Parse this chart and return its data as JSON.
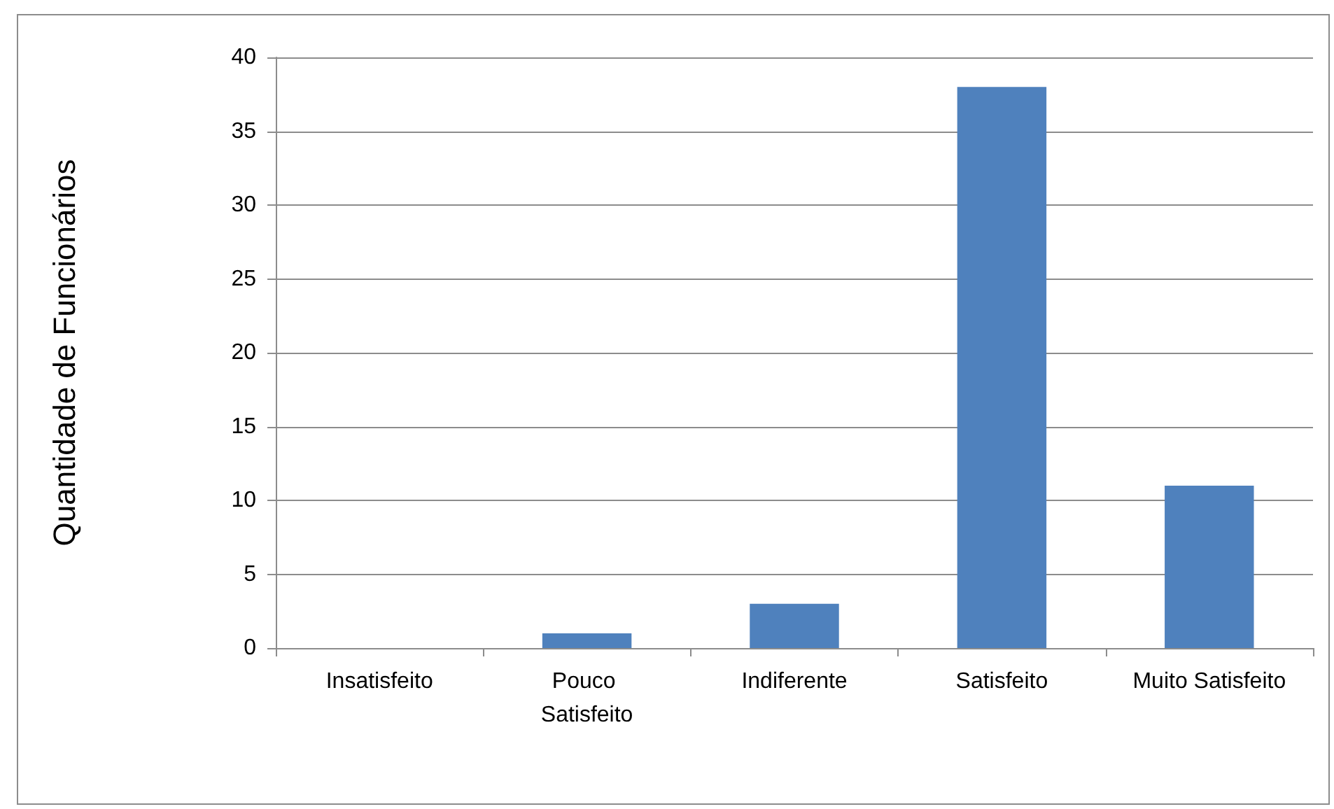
{
  "chart_data": {
    "type": "bar",
    "ylabel": "Quantidade de Funcionários",
    "categories": [
      "Insatisfeito",
      "Pouco Satisfeito",
      "Indiferente",
      "Satisfeito",
      "Muito Satisfeito"
    ],
    "values": [
      0,
      1,
      3,
      38,
      11
    ],
    "color": "#4f81bd",
    "ylim": [
      0,
      40
    ],
    "yticks": [
      0,
      5,
      10,
      15,
      20,
      25,
      30,
      35,
      40
    ],
    "grid": "y"
  }
}
